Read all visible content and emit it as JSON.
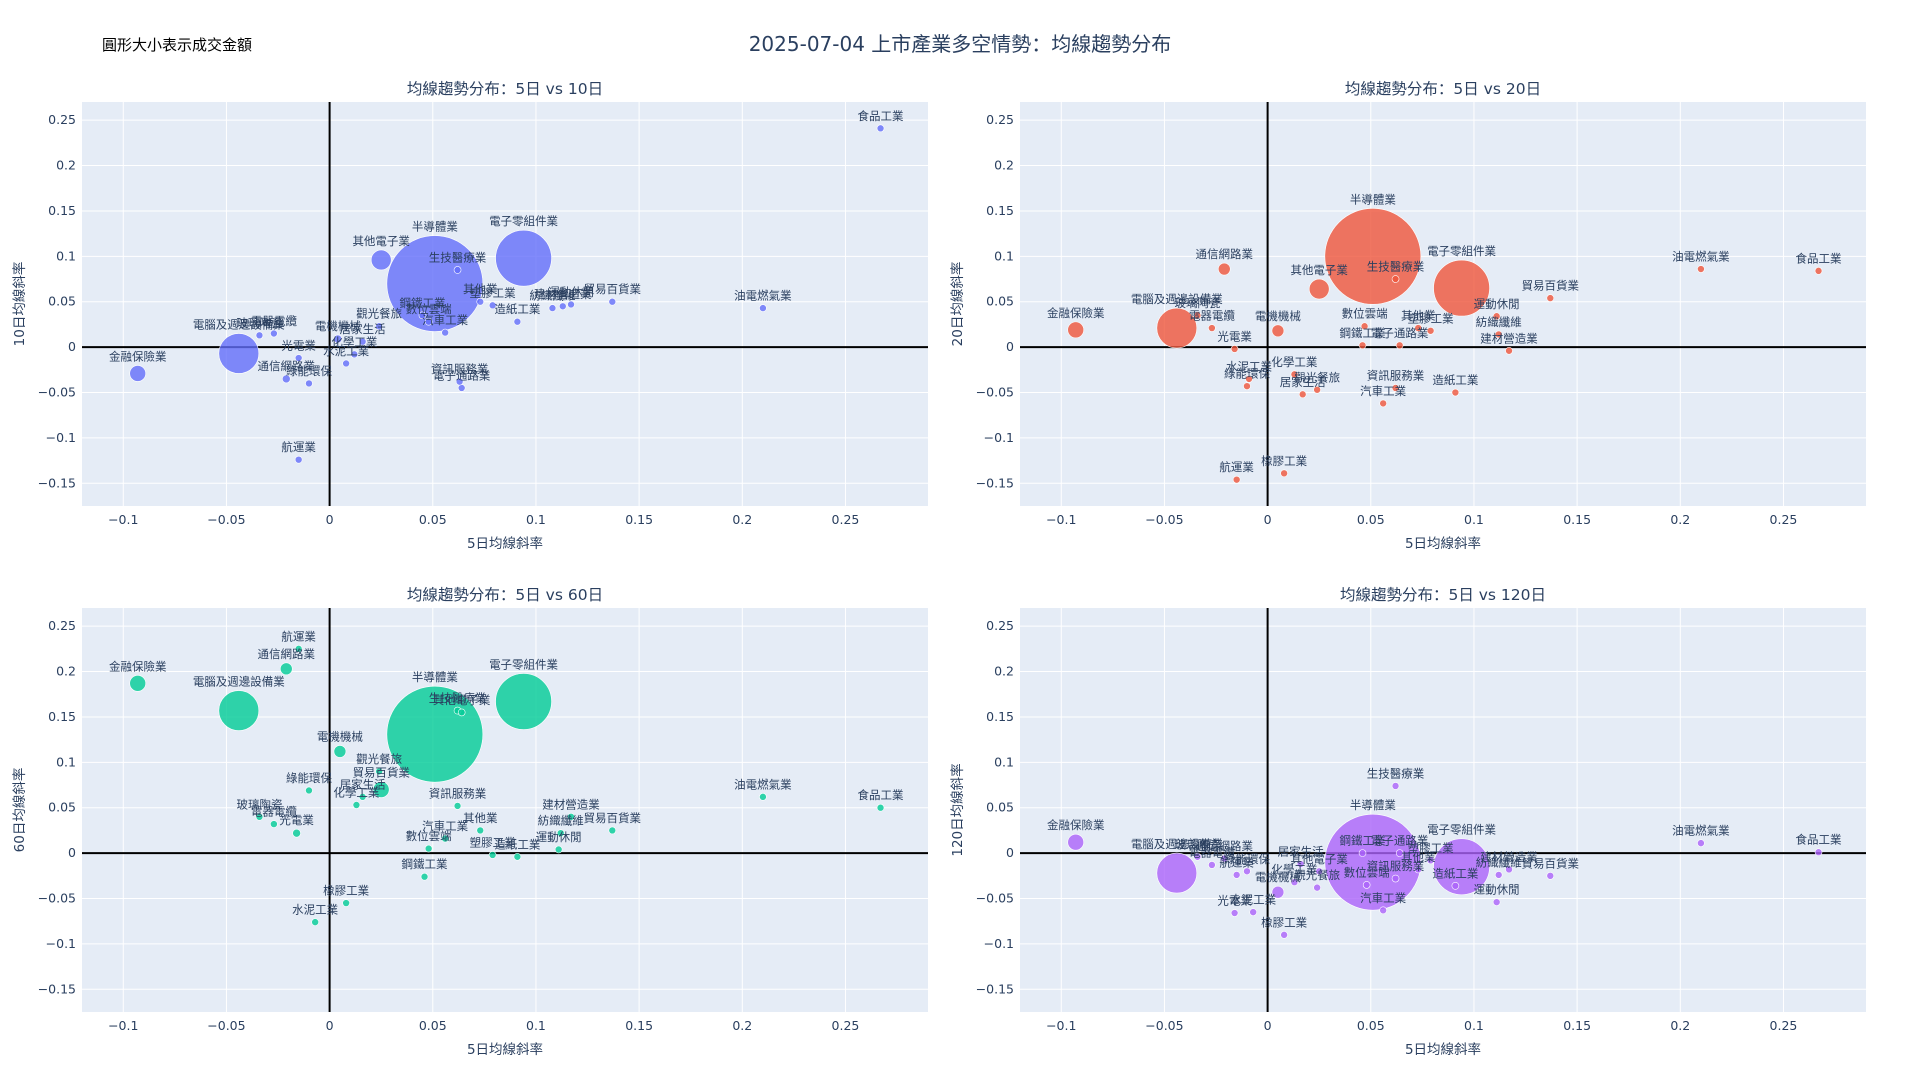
{
  "title": "2025-07-04 上市產業多空情勢：均線趨勢分布",
  "size_note": "圓形大小表示成交金額",
  "chart_data": [
    {
      "type": "scatter",
      "subtitle": "均線趨勢分布：5日 vs 10日",
      "xlabel": "5日均線斜率",
      "ylabel": "10日均線斜率",
      "color": "#636efa",
      "xlim": [
        -0.12,
        0.29
      ],
      "ylim": [
        -0.175,
        0.27
      ],
      "xticks": [
        -0.1,
        -0.05,
        0,
        0.05,
        0.1,
        0.15,
        0.2,
        0.25
      ],
      "xtick_labels": [
        "−0.1",
        "−0.05",
        "0",
        "0.05",
        "0.1",
        "0.15",
        "0.2",
        "0.25"
      ],
      "yticks": [
        -0.15,
        -0.1,
        -0.05,
        0,
        0.05,
        0.1,
        0.15,
        0.2,
        0.25
      ],
      "ytick_labels": [
        "−0.15",
        "−0.1",
        "−0.05",
        "0",
        "0.05",
        "0.1",
        "0.15",
        "0.2",
        "0.25"
      ],
      "points": [
        {
          "label": "食品工業",
          "x": 0.267,
          "y": 0.241,
          "size": 2
        },
        {
          "label": "油電燃氣業",
          "x": 0.21,
          "y": 0.043,
          "size": 2
        },
        {
          "label": "半導體業",
          "x": 0.051,
          "y": 0.07,
          "size": 48
        },
        {
          "label": "電子零組件業",
          "x": 0.094,
          "y": 0.098,
          "size": 28
        },
        {
          "label": "生技醫療業",
          "x": 0.062,
          "y": 0.085,
          "size": 2
        },
        {
          "label": "其他電子業",
          "x": 0.025,
          "y": 0.096,
          "size": 10
        },
        {
          "label": "貿易百貨業",
          "x": 0.137,
          "y": 0.05,
          "size": 2
        },
        {
          "label": "運動休閒",
          "x": 0.117,
          "y": 0.047,
          "size": 2
        },
        {
          "label": "紡織纖維",
          "x": 0.108,
          "y": 0.043,
          "size": 2
        },
        {
          "label": "建材營造業",
          "x": 0.113,
          "y": 0.045,
          "size": 2
        },
        {
          "label": "造紙工業",
          "x": 0.091,
          "y": 0.028,
          "size": 2
        },
        {
          "label": "塑膠工業",
          "x": 0.079,
          "y": 0.046,
          "size": 3
        },
        {
          "label": "其他業",
          "x": 0.073,
          "y": 0.05,
          "size": 2
        },
        {
          "label": "鋼鐵工業",
          "x": 0.045,
          "y": 0.035,
          "size": 3
        },
        {
          "label": "數位雲端",
          "x": 0.048,
          "y": 0.028,
          "size": 2
        },
        {
          "label": "汽車工業",
          "x": 0.056,
          "y": 0.016,
          "size": 2
        },
        {
          "label": "觀光餐旅",
          "x": 0.024,
          "y": 0.023,
          "size": 2
        },
        {
          "label": "居家生活",
          "x": 0.016,
          "y": 0.006,
          "size": 2
        },
        {
          "label": "電機機械",
          "x": 0.004,
          "y": 0.009,
          "size": 4
        },
        {
          "label": "化學工業",
          "x": 0.012,
          "y": -0.008,
          "size": 3
        },
        {
          "label": "水泥工業",
          "x": 0.008,
          "y": -0.018,
          "size": 2
        },
        {
          "label": "資訊服務業",
          "x": 0.063,
          "y": -0.038,
          "size": 2
        },
        {
          "label": "電子通路業",
          "x": 0.064,
          "y": -0.045,
          "size": 3
        },
        {
          "label": "電腦及週邊設備業",
          "x": -0.044,
          "y": -0.007,
          "size": 20
        },
        {
          "label": "玻璃陶瓷",
          "x": -0.034,
          "y": 0.013,
          "size": 2
        },
        {
          "label": "電器電纜",
          "x": -0.027,
          "y": 0.015,
          "size": 2
        },
        {
          "label": "光電業",
          "x": -0.015,
          "y": -0.012,
          "size": 3
        },
        {
          "label": "通信網路業",
          "x": -0.021,
          "y": -0.035,
          "size": 4
        },
        {
          "label": "綠能環保",
          "x": -0.01,
          "y": -0.04,
          "size": 2
        },
        {
          "label": "金融保險業",
          "x": -0.093,
          "y": -0.029,
          "size": 8
        },
        {
          "label": "航運業",
          "x": -0.015,
          "y": -0.124,
          "size": 3
        }
      ]
    },
    {
      "type": "scatter",
      "subtitle": "均線趨勢分布：5日 vs 20日",
      "xlabel": "5日均線斜率",
      "ylabel": "20日均線斜率",
      "color": "#ef553b",
      "xlim": [
        -0.12,
        0.29
      ],
      "ylim": [
        -0.175,
        0.27
      ],
      "xticks": [
        -0.1,
        -0.05,
        0,
        0.05,
        0.1,
        0.15,
        0.2,
        0.25
      ],
      "xtick_labels": [
        "−0.1",
        "−0.05",
        "0",
        "0.05",
        "0.1",
        "0.15",
        "0.2",
        "0.25"
      ],
      "yticks": [
        -0.15,
        -0.1,
        -0.05,
        0,
        0.05,
        0.1,
        0.15,
        0.2,
        0.25
      ],
      "ytick_labels": [
        "−0.15",
        "−0.1",
        "−0.05",
        "0",
        "0.05",
        "0.1",
        "0.15",
        "0.2",
        "0.25"
      ],
      "points": [
        {
          "label": "油電燃氣業",
          "x": 0.21,
          "y": 0.086,
          "size": 2
        },
        {
          "label": "食品工業",
          "x": 0.267,
          "y": 0.084,
          "size": 2
        },
        {
          "label": "半導體業",
          "x": 0.051,
          "y": 0.1,
          "size": 48
        },
        {
          "label": "電子零組件業",
          "x": 0.094,
          "y": 0.065,
          "size": 28
        },
        {
          "label": "生技醫療業",
          "x": 0.062,
          "y": 0.075,
          "size": 2
        },
        {
          "label": "其他電子業",
          "x": 0.025,
          "y": 0.064,
          "size": 10
        },
        {
          "label": "通信網路業",
          "x": -0.021,
          "y": 0.086,
          "size": 6
        },
        {
          "label": "貿易百貨業",
          "x": 0.137,
          "y": 0.054,
          "size": 2
        },
        {
          "label": "運動休閒",
          "x": 0.111,
          "y": 0.034,
          "size": 2
        },
        {
          "label": "紡織纖維",
          "x": 0.112,
          "y": 0.014,
          "size": 2
        },
        {
          "label": "建材營造業",
          "x": 0.117,
          "y": -0.004,
          "size": 2
        },
        {
          "label": "數位雲端",
          "x": 0.047,
          "y": 0.023,
          "size": 2
        },
        {
          "label": "鋼鐵工業",
          "x": 0.046,
          "y": 0.002,
          "size": 3
        },
        {
          "label": "電子通路業",
          "x": 0.064,
          "y": 0.002,
          "size": 3
        },
        {
          "label": "其他業",
          "x": 0.073,
          "y": 0.021,
          "size": 2
        },
        {
          "label": "塑膠工業",
          "x": 0.079,
          "y": 0.018,
          "size": 3
        },
        {
          "label": "電腦及週邊設備業",
          "x": -0.044,
          "y": 0.021,
          "size": 20
        },
        {
          "label": "玻璃陶瓷",
          "x": -0.034,
          "y": 0.035,
          "size": 2
        },
        {
          "label": "電器電纜",
          "x": -0.027,
          "y": 0.021,
          "size": 2
        },
        {
          "label": "電機機械",
          "x": 0.005,
          "y": 0.018,
          "size": 6
        },
        {
          "label": "光電業",
          "x": -0.016,
          "y": -0.002,
          "size": 3
        },
        {
          "label": "金融保險業",
          "x": -0.093,
          "y": 0.019,
          "size": 8
        },
        {
          "label": "水泥工業",
          "x": -0.009,
          "y": -0.035,
          "size": 2
        },
        {
          "label": "化學工業",
          "x": 0.013,
          "y": -0.03,
          "size": 3
        },
        {
          "label": "綠能環保",
          "x": -0.01,
          "y": -0.043,
          "size": 2
        },
        {
          "label": "觀光餐旅",
          "x": 0.024,
          "y": -0.047,
          "size": 2
        },
        {
          "label": "居家生活",
          "x": 0.017,
          "y": -0.052,
          "size": 2
        },
        {
          "label": "資訊服務業",
          "x": 0.062,
          "y": -0.045,
          "size": 2
        },
        {
          "label": "造紙工業",
          "x": 0.091,
          "y": -0.05,
          "size": 2
        },
        {
          "label": "汽車工業",
          "x": 0.056,
          "y": -0.062,
          "size": 2
        },
        {
          "label": "橡膠工業",
          "x": 0.008,
          "y": -0.139,
          "size": 2
        },
        {
          "label": "航運業",
          "x": -0.015,
          "y": -0.146,
          "size": 3
        }
      ]
    },
    {
      "type": "scatter",
      "subtitle": "均線趨勢分布：5日 vs 60日",
      "xlabel": "5日均線斜率",
      "ylabel": "60日均線斜率",
      "color": "#00cc96",
      "xlim": [
        -0.12,
        0.29
      ],
      "ylim": [
        -0.175,
        0.27
      ],
      "xticks": [
        -0.1,
        -0.05,
        0,
        0.05,
        0.1,
        0.15,
        0.2,
        0.25
      ],
      "xtick_labels": [
        "−0.1",
        "−0.05",
        "0",
        "0.05",
        "0.1",
        "0.15",
        "0.2",
        "0.25"
      ],
      "yticks": [
        -0.15,
        -0.1,
        -0.05,
        0,
        0.05,
        0.1,
        0.15,
        0.2,
        0.25
      ],
      "ytick_labels": [
        "−0.15",
        "−0.1",
        "−0.05",
        "0",
        "0.05",
        "0.1",
        "0.15",
        "0.2",
        "0.25"
      ],
      "points": [
        {
          "label": "航運業",
          "x": -0.015,
          "y": 0.225,
          "size": 3
        },
        {
          "label": "通信網路業",
          "x": -0.021,
          "y": 0.203,
          "size": 6
        },
        {
          "label": "金融保險業",
          "x": -0.093,
          "y": 0.187,
          "size": 8
        },
        {
          "label": "電腦及週邊設備業",
          "x": -0.044,
          "y": 0.157,
          "size": 20
        },
        {
          "label": "半導體業",
          "x": 0.051,
          "y": 0.131,
          "size": 48
        },
        {
          "label": "電子零組件業",
          "x": 0.094,
          "y": 0.167,
          "size": 28
        },
        {
          "label": "生技醫療業",
          "x": 0.062,
          "y": 0.157,
          "size": 2
        },
        {
          "label": "其他電子業",
          "x": 0.064,
          "y": 0.155,
          "size": 2
        },
        {
          "label": "電機機械",
          "x": 0.005,
          "y": 0.112,
          "size": 6
        },
        {
          "label": "觀光餐旅",
          "x": 0.024,
          "y": 0.09,
          "size": 2
        },
        {
          "label": "貿易百貨業",
          "x": 0.025,
          "y": 0.07,
          "size": 8
        },
        {
          "label": "綠能環保",
          "x": -0.01,
          "y": 0.069,
          "size": 2
        },
        {
          "label": "居家生活",
          "x": 0.016,
          "y": 0.062,
          "size": 2
        },
        {
          "label": "化學工業",
          "x": 0.013,
          "y": 0.053,
          "size": 2
        },
        {
          "label": "資訊服務業",
          "x": 0.062,
          "y": 0.052,
          "size": 2
        },
        {
          "label": "油電燃氣業",
          "x": 0.21,
          "y": 0.062,
          "size": 2
        },
        {
          "label": "食品工業",
          "x": 0.267,
          "y": 0.05,
          "size": 2
        },
        {
          "label": "建材營造業",
          "x": 0.117,
          "y": 0.04,
          "size": 2
        },
        {
          "label": "紡織纖維",
          "x": 0.112,
          "y": 0.022,
          "size": 2
        },
        {
          "label": "貿易百貨業",
          "x": 0.137,
          "y": 0.025,
          "size": 2
        },
        {
          "label": "其他業",
          "x": 0.073,
          "y": 0.025,
          "size": 2
        },
        {
          "label": "運動休閒",
          "x": 0.111,
          "y": 0.004,
          "size": 2
        },
        {
          "label": "造紙工業",
          "x": 0.091,
          "y": -0.004,
          "size": 2
        },
        {
          "label": "塑膠工業",
          "x": 0.079,
          "y": -0.002,
          "size": 2
        },
        {
          "label": "汽車工業",
          "x": 0.056,
          "y": 0.016,
          "size": 2
        },
        {
          "label": "數位雲端",
          "x": 0.048,
          "y": 0.005,
          "size": 2
        },
        {
          "label": "鋼鐵工業",
          "x": 0.046,
          "y": -0.026,
          "size": 2
        },
        {
          "label": "玻璃陶瓷",
          "x": -0.034,
          "y": 0.04,
          "size": 2
        },
        {
          "label": "電器電纜",
          "x": -0.027,
          "y": 0.032,
          "size": 2
        },
        {
          "label": "光電業",
          "x": -0.016,
          "y": 0.022,
          "size": 4
        },
        {
          "label": "橡膠工業",
          "x": 0.008,
          "y": -0.055,
          "size": 2
        },
        {
          "label": "水泥工業",
          "x": -0.007,
          "y": -0.076,
          "size": 2
        }
      ]
    },
    {
      "type": "scatter",
      "subtitle": "均線趨勢分布：5日 vs 120日",
      "xlabel": "5日均線斜率",
      "ylabel": "120日均線斜率",
      "color": "#ab63fa",
      "xlim": [
        -0.12,
        0.29
      ],
      "ylim": [
        -0.175,
        0.27
      ],
      "xticks": [
        -0.1,
        -0.05,
        0,
        0.05,
        0.1,
        0.15,
        0.2,
        0.25
      ],
      "xtick_labels": [
        "−0.1",
        "−0.05",
        "0",
        "0.05",
        "0.1",
        "0.15",
        "0.2",
        "0.25"
      ],
      "yticks": [
        -0.15,
        -0.1,
        -0.05,
        0,
        0.05,
        0.1,
        0.15,
        0.2,
        0.25
      ],
      "ytick_labels": [
        "−0.15",
        "−0.1",
        "−0.05",
        "0",
        "0.05",
        "0.1",
        "0.15",
        "0.2",
        "0.25"
      ],
      "points": [
        {
          "label": "生技醫療業",
          "x": 0.062,
          "y": 0.074,
          "size": 2
        },
        {
          "label": "半導體業",
          "x": 0.051,
          "y": -0.01,
          "size": 48
        },
        {
          "label": "電子零組件業",
          "x": 0.094,
          "y": -0.015,
          "size": 28
        },
        {
          "label": "金融保險業",
          "x": -0.093,
          "y": 0.012,
          "size": 8
        },
        {
          "label": "油電燃氣業",
          "x": 0.21,
          "y": 0.011,
          "size": 2
        },
        {
          "label": "食品工業",
          "x": 0.267,
          "y": 0.001,
          "size": 2
        },
        {
          "label": "電腦及週邊設備業",
          "x": -0.044,
          "y": -0.022,
          "size": 20
        },
        {
          "label": "玻璃陶瓷",
          "x": -0.034,
          "y": -0.004,
          "size": 2
        },
        {
          "label": "通信網路業",
          "x": -0.021,
          "y": -0.006,
          "size": 2
        },
        {
          "label": "電器電纜",
          "x": -0.027,
          "y": -0.013,
          "size": 2
        },
        {
          "label": "綠能環保",
          "x": -0.01,
          "y": -0.02,
          "size": 2
        },
        {
          "label": "居家生活",
          "x": 0.016,
          "y": -0.012,
          "size": 2
        },
        {
          "label": "其他電子業",
          "x": 0.025,
          "y": -0.02,
          "size": 2
        },
        {
          "label": "鋼鐵工業",
          "x": 0.046,
          "y": 0.0,
          "size": 2
        },
        {
          "label": "電子通路業",
          "x": 0.064,
          "y": 0.0,
          "size": 2
        },
        {
          "label": "塑膠工業",
          "x": 0.079,
          "y": -0.008,
          "size": 2
        },
        {
          "label": "其他業",
          "x": 0.073,
          "y": -0.018,
          "size": 2
        },
        {
          "label": "航運業",
          "x": -0.015,
          "y": -0.024,
          "size": 2
        },
        {
          "label": "電機機械",
          "x": 0.005,
          "y": -0.043,
          "size": 6
        },
        {
          "label": "化學工業",
          "x": 0.013,
          "y": -0.032,
          "size": 2
        },
        {
          "label": "觀光餐旅",
          "x": 0.024,
          "y": -0.038,
          "size": 2
        },
        {
          "label": "數位雲端",
          "x": 0.048,
          "y": -0.035,
          "size": 2
        },
        {
          "label": "資訊服務業",
          "x": 0.062,
          "y": -0.028,
          "size": 2
        },
        {
          "label": "汽車工業",
          "x": 0.056,
          "y": -0.063,
          "size": 2
        },
        {
          "label": "造紙工業",
          "x": 0.091,
          "y": -0.036,
          "size": 2
        },
        {
          "label": "紡織纖維",
          "x": 0.112,
          "y": -0.024,
          "size": 2
        },
        {
          "label": "建材營造業",
          "x": 0.117,
          "y": -0.018,
          "size": 2
        },
        {
          "label": "貿易百貨業",
          "x": 0.137,
          "y": -0.025,
          "size": 2
        },
        {
          "label": "運動休閒",
          "x": 0.111,
          "y": -0.054,
          "size": 2
        },
        {
          "label": "光電業",
          "x": -0.016,
          "y": -0.066,
          "size": 3
        },
        {
          "label": "水泥工業",
          "x": -0.007,
          "y": -0.065,
          "size": 2
        },
        {
          "label": "橡膠工業",
          "x": 0.008,
          "y": -0.09,
          "size": 2
        }
      ]
    }
  ]
}
